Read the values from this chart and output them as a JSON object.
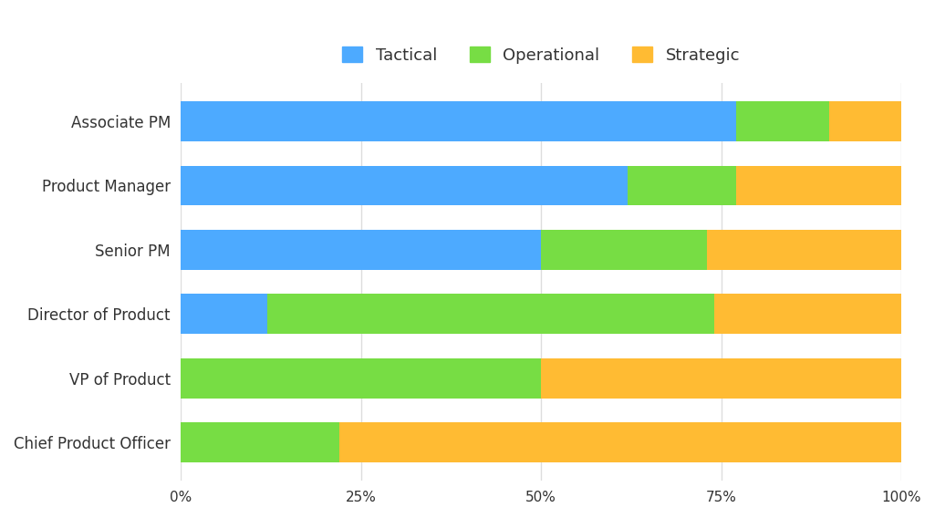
{
  "categories": [
    "Associate PM",
    "Product Manager",
    "Senior PM",
    "Director of Product",
    "VP of Product",
    "Chief Product Officer"
  ],
  "tactical": [
    77,
    62,
    50,
    12,
    0,
    0
  ],
  "operational": [
    13,
    15,
    23,
    62,
    50,
    22
  ],
  "strategic": [
    10,
    23,
    27,
    26,
    50,
    78
  ],
  "colors": {
    "tactical": "#4DAAFF",
    "operational": "#77DD44",
    "strategic": "#FFBB33"
  },
  "xlabel_ticks": [
    0,
    25,
    50,
    75,
    100
  ],
  "xlabel_tick_labels": [
    "0%",
    "25%",
    "50%",
    "75%",
    "100%"
  ],
  "background_color": "#ffffff",
  "grid_color": "#dddddd",
  "bar_height": 0.62,
  "figsize": [
    10.25,
    5.68
  ],
  "dpi": 100,
  "ytick_fontsize": 12,
  "xtick_fontsize": 11,
  "legend_fontsize": 13
}
